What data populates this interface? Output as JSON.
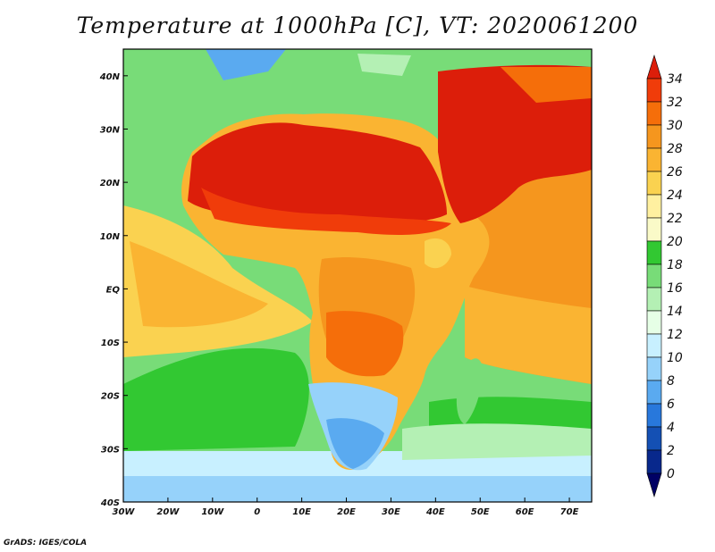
{
  "title": "Temperature at 1000hPa [C], VT: 2020061200",
  "footer": "GrADS: IGES/COLA",
  "map": {
    "variable": "Temperature at 1000hPa",
    "units": "C",
    "lon_range": [
      -30,
      75
    ],
    "lat_range": [
      -40,
      45
    ],
    "x_ticks": [
      "30W",
      "20W",
      "10W",
      "0",
      "10E",
      "20E",
      "30E",
      "40E",
      "50E",
      "60E",
      "70E"
    ],
    "x_tick_lons": [
      -30,
      -20,
      -10,
      0,
      10,
      20,
      30,
      40,
      50,
      60,
      70
    ],
    "y_ticks": [
      "40N",
      "30N",
      "20N",
      "10N",
      "EQ",
      "10S",
      "20S",
      "30S",
      "40S"
    ],
    "y_tick_lats": [
      40,
      30,
      20,
      10,
      0,
      -10,
      -20,
      -30,
      -40
    ]
  },
  "colorbar": {
    "labels": [
      "34",
      "32",
      "30",
      "28",
      "26",
      "24",
      "22",
      "20",
      "18",
      "16",
      "14",
      "12",
      "10",
      "8",
      "6",
      "4",
      "2",
      "0"
    ],
    "colors": [
      "#dc1e0a",
      "#f03c0a",
      "#f56e0a",
      "#f5961e",
      "#fab432",
      "#fad250",
      "#fff0a0",
      "#fafac8",
      "#32c832",
      "#78dc78",
      "#b4f0b4",
      "#e6ffe6",
      "#c8f0ff",
      "#96d2fa",
      "#5aaaf0",
      "#2878dc",
      "#1450b4",
      "#08288c",
      "#000064"
    ],
    "colors_note": "bottom-most swatch is darkest blue; top is red"
  }
}
